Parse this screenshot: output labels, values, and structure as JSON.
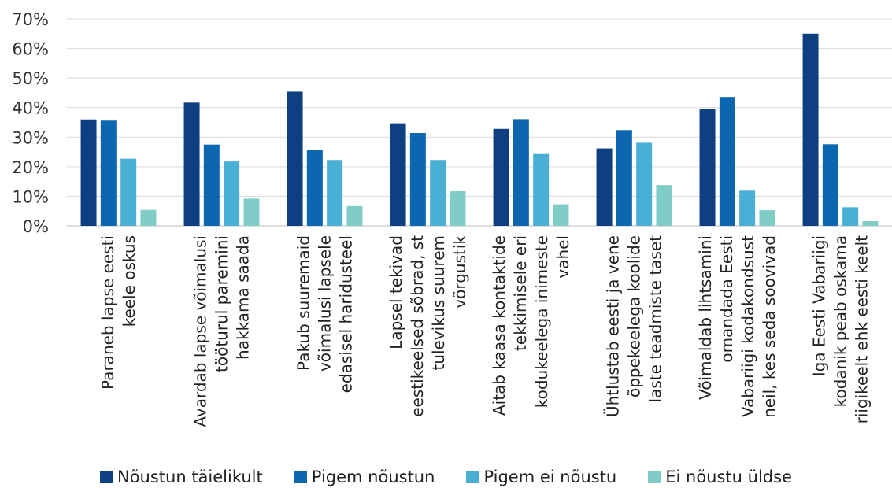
{
  "chart_data": {
    "type": "bar",
    "categories": [
      [
        "Paraneb lapse eesti",
        "keele oskus"
      ],
      [
        "Avardab lapse võimalusi",
        "tööturul paremini",
        "hakkama saada"
      ],
      [
        "Pakub suuremaid",
        "võimalusi lapsele",
        "edasisel haridusteel"
      ],
      [
        "Lapsel tekivad",
        "eestikeelsed sõbrad, st",
        "tulevikus suurem",
        "võrgustik"
      ],
      [
        "Aitab kaasa kontaktide",
        "tekkimisele eri",
        "kodukeelega inimeste",
        "vahel"
      ],
      [
        "Ühtlustab eesti ja vene",
        "õppekeelega koolide",
        "laste teadmiste taset"
      ],
      [
        "Võimaldab lihtsamini",
        "omandada Eesti",
        "Vabariigi kodakondsust",
        "neil, kes seda soovivad"
      ],
      [
        "Iga Eesti Vabariigi",
        "kodanik peab oskama",
        "riigikeelt ehk eesti keelt"
      ]
    ],
    "series": [
      {
        "name": "Nõustun täielikult",
        "color": "#0e3f80",
        "values": [
          36,
          41.7,
          45.4,
          34.7,
          32.8,
          26.2,
          39.4,
          65
        ]
      },
      {
        "name": "Pigem nõustun",
        "color": "#0d66b0",
        "values": [
          35.6,
          27.5,
          25.7,
          31.4,
          36.1,
          32.4,
          43.6,
          27.6
        ]
      },
      {
        "name": "Pigem ei nõustu",
        "color": "#4aafd5",
        "values": [
          22.7,
          21.8,
          22.3,
          22.3,
          24.3,
          28.1,
          11.9,
          6.3
        ]
      },
      {
        "name": "Ei nõustu üldse",
        "color": "#7fcdc6",
        "values": [
          5.4,
          9.2,
          6.7,
          11.7,
          7.3,
          13.8,
          5.3,
          1.6
        ]
      }
    ],
    "yticks": [
      "0%",
      "10%",
      "20%",
      "30%",
      "40%",
      "50%",
      "60%",
      "70%"
    ],
    "ylim": [
      0,
      70
    ],
    "grid": true,
    "legend_position": "bottom"
  }
}
